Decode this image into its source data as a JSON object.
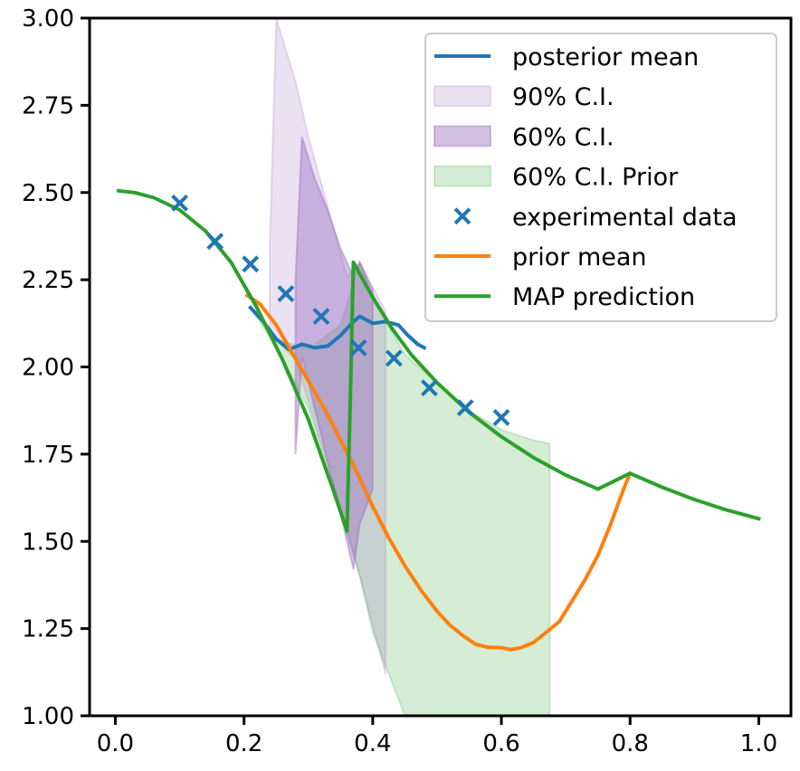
{
  "chart_data": {
    "type": "line",
    "xlim": [
      -0.04,
      1.05
    ],
    "ylim": [
      1.0,
      3.0
    ],
    "x_ticks": [
      0.0,
      0.2,
      0.4,
      0.6,
      0.8,
      1.0
    ],
    "x_tick_labels": [
      "0.0",
      "0.2",
      "0.4",
      "0.6",
      "0.8",
      "1.0"
    ],
    "y_ticks": [
      1.0,
      1.25,
      1.5,
      1.75,
      2.0,
      2.25,
      2.5,
      2.75,
      3.0
    ],
    "y_tick_labels": [
      "1.00",
      "1.25",
      "1.50",
      "1.75",
      "2.00",
      "2.25",
      "2.50",
      "2.75",
      "3.00"
    ],
    "grid": false,
    "legend_position": "top-right",
    "legend": [
      {
        "label": "posterior mean",
        "kind": "line",
        "color": "#1f77b4"
      },
      {
        "label": "90% C.I.",
        "kind": "patch",
        "color": "#9467bd",
        "alpha": 0.2
      },
      {
        "label": "60% C.I.",
        "kind": "patch",
        "color": "#9467bd",
        "alpha": 0.4
      },
      {
        "label": "60% C.I. Prior",
        "kind": "patch",
        "color": "#2ca02c",
        "alpha": 0.2
      },
      {
        "label": "experimental data",
        "kind": "marker",
        "color": "#1f77b4"
      },
      {
        "label": "prior mean",
        "kind": "line",
        "color": "#ff7f0e"
      },
      {
        "label": "MAP prediction",
        "kind": "line",
        "color": "#2ca02c"
      }
    ],
    "series": [
      {
        "name": "posterior mean",
        "type": "line",
        "color": "#1f77b4",
        "x": [
          0.21,
          0.23,
          0.25,
          0.27,
          0.29,
          0.31,
          0.33,
          0.35,
          0.37,
          0.38,
          0.4,
          0.42,
          0.44,
          0.455,
          0.47,
          0.48
        ],
        "y": [
          2.17,
          2.13,
          2.08,
          2.05,
          2.065,
          2.055,
          2.06,
          2.09,
          2.13,
          2.145,
          2.125,
          2.13,
          2.12,
          2.09,
          2.065,
          2.055
        ]
      },
      {
        "name": "experimental data",
        "type": "scatter",
        "color": "#1f77b4",
        "x": [
          0.1,
          0.155,
          0.21,
          0.265,
          0.32,
          0.378,
          0.433,
          0.488,
          0.544,
          0.6
        ],
        "y": [
          2.47,
          2.36,
          2.295,
          2.21,
          2.145,
          2.055,
          2.025,
          1.94,
          1.883,
          1.855
        ]
      },
      {
        "name": "prior mean",
        "type": "line",
        "color": "#ff7f0e",
        "x": [
          0.205,
          0.225,
          0.25,
          0.275,
          0.3,
          0.325,
          0.35,
          0.375,
          0.4,
          0.425,
          0.45,
          0.475,
          0.5,
          0.52,
          0.54,
          0.56,
          0.58,
          0.6,
          0.615,
          0.63,
          0.65,
          0.67,
          0.69,
          0.71,
          0.73,
          0.75,
          0.77,
          0.79,
          0.8
        ],
        "y": [
          2.205,
          2.18,
          2.12,
          2.04,
          1.96,
          1.88,
          1.79,
          1.7,
          1.6,
          1.51,
          1.43,
          1.36,
          1.3,
          1.26,
          1.23,
          1.205,
          1.196,
          1.195,
          1.19,
          1.195,
          1.21,
          1.24,
          1.27,
          1.33,
          1.39,
          1.46,
          1.55,
          1.65,
          1.695
        ]
      },
      {
        "name": "MAP prediction",
        "type": "line",
        "color": "#2ca02c",
        "x": [
          0.005,
          0.03,
          0.06,
          0.1,
          0.14,
          0.18,
          0.22,
          0.26,
          0.3,
          0.34,
          0.36,
          0.365,
          0.37,
          0.4,
          0.43,
          0.46,
          0.5,
          0.55,
          0.6,
          0.65,
          0.7,
          0.75,
          0.8,
          0.85,
          0.9,
          0.95,
          1.0
        ],
        "y": [
          2.505,
          2.5,
          2.485,
          2.45,
          2.39,
          2.3,
          2.17,
          2.02,
          1.85,
          1.64,
          1.53,
          1.9,
          2.3,
          2.2,
          2.11,
          2.035,
          1.955,
          1.87,
          1.8,
          1.74,
          1.69,
          1.65,
          1.695,
          1.655,
          1.62,
          1.59,
          1.565
        ]
      }
    ],
    "bands": [
      {
        "name": "60% C.I. Prior",
        "color": "#2ca02c",
        "alpha": 0.2,
        "x": [
          0.21,
          0.25,
          0.3,
          0.35,
          0.38,
          0.4,
          0.45,
          0.5,
          0.55,
          0.6,
          0.65,
          0.675
        ],
        "upper": [
          2.17,
          2.08,
          2.05,
          2.12,
          2.3,
          2.2,
          2.035,
          1.955,
          1.875,
          1.82,
          1.79,
          1.78
        ],
        "lower": [
          2.17,
          2.06,
          1.88,
          1.6,
          1.4,
          1.24,
          1.0,
          1.0,
          1.0,
          1.0,
          1.0,
          1.0
        ]
      },
      {
        "name": "90% C.I.",
        "color": "#9467bd",
        "alpha": 0.2,
        "x": [
          0.24,
          0.25,
          0.28,
          0.3,
          0.33,
          0.36,
          0.38,
          0.42
        ],
        "upper": [
          2.35,
          3.0,
          2.82,
          2.66,
          2.46,
          2.26,
          2.3,
          2.16
        ],
        "lower": [
          2.1,
          2.08,
          2.02,
          1.9,
          1.72,
          1.52,
          1.4,
          1.12
        ]
      },
      {
        "name": "60% C.I.",
        "color": "#9467bd",
        "alpha": 0.4,
        "x": [
          0.28,
          0.29,
          0.31,
          0.33,
          0.35,
          0.37,
          0.38,
          0.4
        ],
        "upper": [
          2.25,
          2.66,
          2.54,
          2.45,
          2.34,
          2.26,
          2.3,
          2.22
        ],
        "lower": [
          1.75,
          2.03,
          1.88,
          1.73,
          1.58,
          1.42,
          1.55,
          1.65
        ]
      }
    ]
  }
}
